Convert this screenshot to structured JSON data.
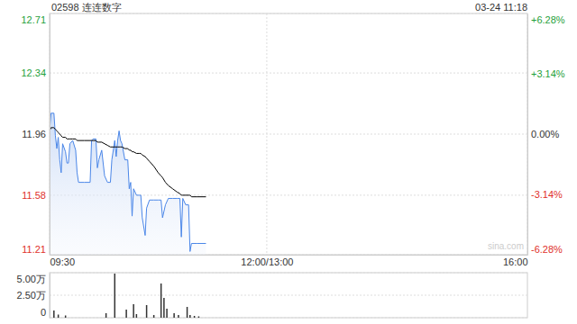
{
  "chart_data": [
    {
      "type": "line",
      "title": "02598 连连数字",
      "subtitle": "03-24 11:18",
      "annotations": [
        "sina.com"
      ],
      "x": [
        0,
        1,
        3,
        4,
        5,
        6,
        7,
        8,
        9,
        11,
        12,
        13,
        14,
        16,
        18,
        19,
        20,
        24,
        28,
        29,
        30,
        32,
        33,
        34,
        36,
        38,
        40,
        42,
        43,
        45,
        46,
        47,
        48,
        49,
        50,
        52,
        54,
        55,
        56,
        57,
        58,
        60,
        62,
        63,
        64,
        66,
        67,
        69,
        72,
        75,
        77,
        78,
        80,
        82,
        85,
        88,
        90,
        91,
        92,
        94,
        96,
        97,
        98,
        102,
        108
      ],
      "series": [
        {
          "type": "area",
          "color": "#4a86e8",
          "values": [
            11.98,
            12.09,
            12.09,
            11.95,
            11.87,
            11.94,
            11.8,
            11.72,
            11.9,
            11.85,
            11.78,
            11.78,
            11.9,
            11.92,
            11.86,
            11.72,
            11.66,
            11.66,
            11.66,
            11.92,
            11.93,
            11.93,
            11.75,
            11.8,
            11.86,
            11.7,
            11.66,
            11.66,
            11.8,
            11.92,
            11.82,
            11.92,
            11.98,
            11.92,
            11.9,
            11.8,
            11.8,
            11.62,
            11.66,
            11.45,
            11.62,
            11.58,
            11.58,
            11.58,
            11.44,
            11.33,
            11.5,
            11.55,
            11.55,
            11.55,
            11.55,
            11.44,
            11.52,
            11.56,
            11.56,
            11.56,
            11.56,
            11.32,
            11.56,
            11.52,
            11.52,
            11.23,
            11.28,
            11.28,
            11.28
          ]
        },
        {
          "type": "line",
          "color": "#000000",
          "values": [
            11.98,
            12.0,
            12.0,
            11.99,
            11.98,
            11.97,
            11.96,
            11.95,
            11.94,
            11.94,
            11.93,
            11.93,
            11.93,
            11.93,
            11.93,
            11.92,
            11.92,
            11.92,
            11.92,
            11.92,
            11.92,
            11.92,
            11.91,
            11.91,
            11.91,
            11.9,
            11.89,
            11.88,
            11.88,
            11.88,
            11.88,
            11.88,
            11.88,
            11.88,
            11.88,
            11.87,
            11.87,
            11.86,
            11.86,
            11.85,
            11.85,
            11.84,
            11.84,
            11.84,
            11.83,
            11.82,
            11.81,
            11.79,
            11.76,
            11.72,
            11.7,
            11.69,
            11.66,
            11.64,
            11.62,
            11.6,
            11.59,
            11.58,
            11.58,
            11.58,
            11.58,
            11.58,
            11.57,
            11.57,
            11.57
          ]
        }
      ],
      "xlim": [
        0,
        330
      ],
      "xticks": [
        {
          "value": 0,
          "label": "09:30"
        },
        {
          "value": 150,
          "label": "12:00/13:00"
        },
        {
          "value": 330,
          "label": "16:00"
        }
      ],
      "ylim": [
        11.21,
        12.71
      ],
      "yticks": [
        11.21,
        11.58,
        11.96,
        12.34,
        12.71
      ],
      "y2lim": [
        -6.28,
        6.28
      ],
      "y2ticks": [
        {
          "value": -6.28,
          "label": "-6.28%"
        },
        {
          "value": -3.14,
          "label": "-3.14%"
        },
        {
          "value": 0,
          "label": "0.00%"
        },
        {
          "value": 3.14,
          "label": "+3.14%"
        },
        {
          "value": 6.28,
          "label": "+6.28%"
        }
      ],
      "grid": true
    },
    {
      "type": "bar",
      "x": [
        3,
        6,
        11,
        39,
        45,
        53,
        58,
        60,
        67,
        72,
        77,
        79,
        81,
        86,
        89,
        95,
        97,
        100,
        103
      ],
      "values": [
        8000,
        3500,
        2500,
        5000,
        49000,
        9000,
        15000,
        4000,
        14000,
        3000,
        38000,
        22000,
        10000,
        5000,
        3000,
        12000,
        3000,
        2000,
        1500
      ],
      "color": "#333333",
      "xlim": [
        0,
        330
      ],
      "ylim": [
        0,
        50000
      ],
      "yticks": [
        0,
        {
          "value": 25000,
          "label": "2.50万"
        },
        {
          "value": 50000,
          "label": "5.00万"
        }
      ],
      "grid": true,
      "tick_labels": "y"
    }
  ]
}
